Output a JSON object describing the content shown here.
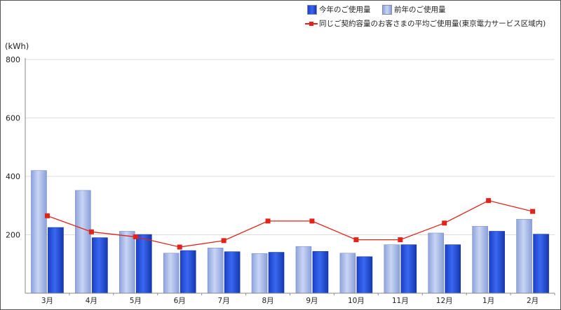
{
  "colors": {
    "this_year": "#2b55e0",
    "last_year": "#a7b9ea",
    "average": "#e2231a",
    "grid": "#dddddd",
    "axis": "#888888"
  },
  "legend": {
    "this_year": "今年のご使用量",
    "last_year": "前年のご使用量",
    "average": "同じご契約容量のお客さまの平均ご使用量(東京電力サービス区域内)"
  },
  "chart_data": {
    "type": "bar",
    "unit_label": "(kWh)",
    "categories": [
      "3月",
      "4月",
      "5月",
      "6月",
      "7月",
      "8月",
      "9月",
      "10月",
      "11月",
      "12月",
      "1月",
      "2月"
    ],
    "ylim": [
      0,
      800
    ],
    "yticks": [
      200,
      400,
      600,
      800
    ],
    "grid": true,
    "legend_position": "top-right",
    "series": [
      {
        "name": "前年のご使用量",
        "kind": "bar",
        "color_key": "last_year",
        "values": [
          420,
          352,
          212,
          137,
          155,
          136,
          160,
          137,
          166,
          206,
          229,
          253
        ]
      },
      {
        "name": "今年のご使用量",
        "kind": "bar",
        "color_key": "this_year",
        "values": [
          225,
          190,
          201,
          146,
          142,
          140,
          143,
          125,
          166,
          166,
          212,
          202
        ]
      },
      {
        "name": "同じご契約容量のお客さまの平均ご使用量(東京電力サービス区域内)",
        "kind": "line",
        "color_key": "average",
        "values": [
          265,
          210,
          193,
          158,
          180,
          247,
          247,
          183,
          183,
          240,
          317,
          280
        ]
      }
    ]
  }
}
